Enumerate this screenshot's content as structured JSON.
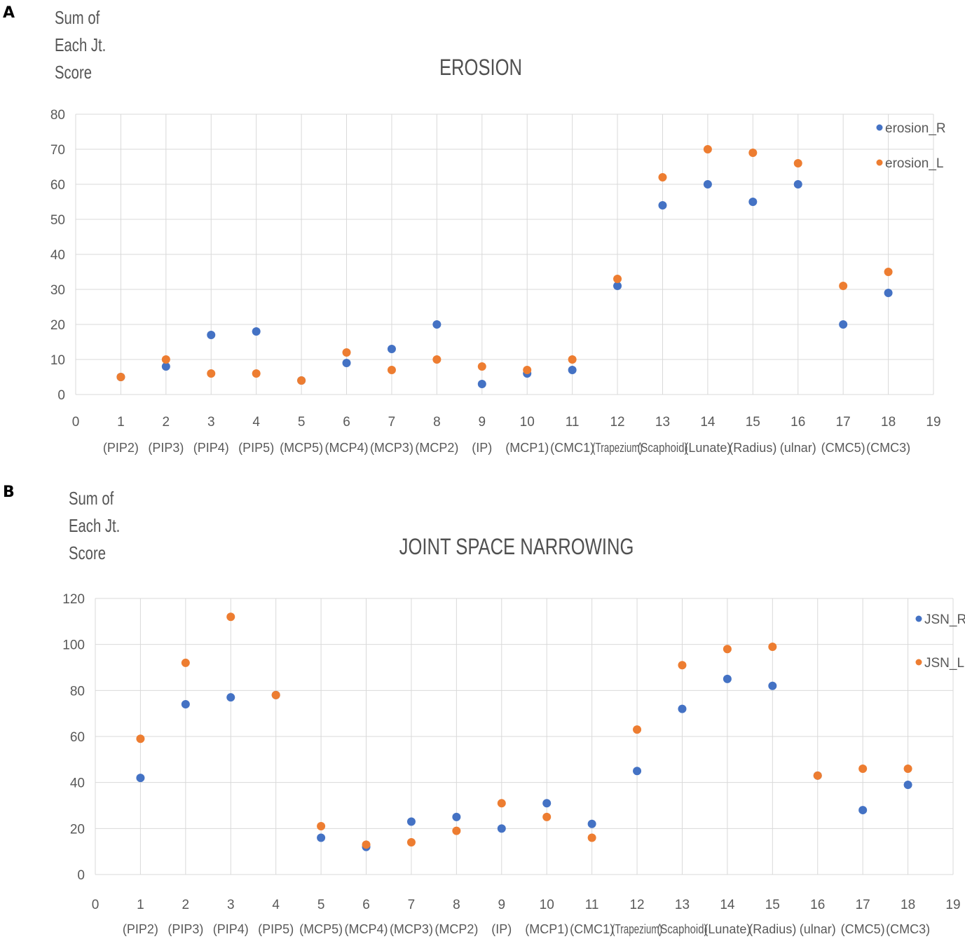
{
  "panels": [
    {
      "letter": "A",
      "ylabel_lines": [
        "Sum of",
        "Each Jt.",
        "Score"
      ],
      "chart_data": {
        "type": "scatter",
        "title": "EROSION",
        "xlim": [
          0,
          19
        ],
        "ylim": [
          0,
          80
        ],
        "x_ticks": [
          0,
          1,
          2,
          3,
          4,
          5,
          6,
          7,
          8,
          9,
          10,
          11,
          12,
          13,
          14,
          15,
          16,
          17,
          18,
          19
        ],
        "y_ticks": [
          0,
          10,
          20,
          30,
          40,
          50,
          60,
          70,
          80
        ],
        "category_labels": [
          "(PIP2)",
          "(PIP3)",
          "(PIP4)",
          "(PIP5)",
          "(MCP5)",
          "(MCP4)",
          "(MCP3)",
          "(MCP2)",
          "(IP)",
          "(MCP1)",
          "(CMC1)",
          "(Trapezium)",
          "(Scaphoid)",
          "(Lunate)",
          "(Radius)",
          "(ulnar)",
          "(CMC5)",
          "(CMC3)"
        ],
        "grid": true,
        "legend_position": "top-right",
        "series": [
          {
            "name": "erosion_R",
            "color": "#4472C4",
            "x": [
              1,
              2,
              3,
              4,
              5,
              6,
              7,
              8,
              9,
              10,
              11,
              12,
              13,
              14,
              15,
              16,
              17,
              18
            ],
            "y": [
              5,
              8,
              17,
              18,
              4,
              9,
              13,
              20,
              3,
              6,
              7,
              31,
              54,
              60,
              55,
              60,
              20,
              29
            ]
          },
          {
            "name": "erosion_L",
            "color": "#ED7D31",
            "x": [
              1,
              2,
              3,
              4,
              5,
              6,
              7,
              8,
              9,
              10,
              11,
              12,
              13,
              14,
              15,
              16,
              17,
              18
            ],
            "y": [
              5,
              10,
              6,
              6,
              4,
              12,
              7,
              10,
              8,
              7,
              10,
              33,
              62,
              70,
              69,
              66,
              31,
              35
            ]
          }
        ]
      }
    },
    {
      "letter": "B",
      "ylabel_lines": [
        "Sum of",
        "Each Jt.",
        "Score"
      ],
      "chart_data": {
        "type": "scatter",
        "title": "JOINT SPACE NARROWING",
        "xlim": [
          0,
          19
        ],
        "ylim": [
          0,
          120
        ],
        "x_ticks": [
          0,
          1,
          2,
          3,
          4,
          5,
          6,
          7,
          8,
          9,
          10,
          11,
          12,
          13,
          14,
          15,
          16,
          17,
          18,
          19
        ],
        "y_ticks": [
          0,
          20,
          40,
          60,
          80,
          100,
          120
        ],
        "category_labels": [
          "(PIP2)",
          "(PIP3)",
          "(PIP4)",
          "(PIP5)",
          "(MCP5)",
          "(MCP4)",
          "(MCP3)",
          "(MCP2)",
          "(IP)",
          "(MCP1)",
          "(CMC1)",
          "(Trapezium)",
          "(Scaphoid)",
          "(Lunate)",
          "(Radius)",
          "(ulnar)",
          "(CMC5)",
          "(CMC3)"
        ],
        "grid": true,
        "legend_position": "top-right",
        "series": [
          {
            "name": "JSN_R",
            "color": "#4472C4",
            "x": [
              1,
              2,
              3,
              4,
              5,
              6,
              7,
              8,
              9,
              10,
              11,
              12,
              13,
              14,
              15,
              16,
              17,
              18
            ],
            "y": [
              42,
              74,
              77,
              78,
              16,
              12,
              23,
              25,
              20,
              31,
              22,
              45,
              72,
              85,
              82,
              43,
              28,
              39
            ]
          },
          {
            "name": "JSN_L",
            "color": "#ED7D31",
            "x": [
              1,
              2,
              3,
              4,
              5,
              6,
              7,
              8,
              9,
              10,
              11,
              12,
              13,
              14,
              15,
              16,
              17,
              18
            ],
            "y": [
              59,
              92,
              112,
              78,
              21,
              13,
              14,
              19,
              31,
              25,
              16,
              63,
              91,
              98,
              99,
              43,
              46,
              46
            ]
          }
        ]
      }
    }
  ]
}
